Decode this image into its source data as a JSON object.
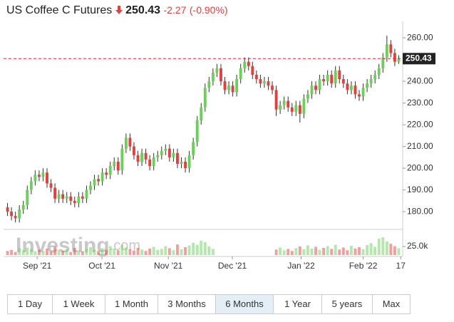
{
  "header": {
    "title": "US Coffee C Futures",
    "price": "250.43",
    "change": "-2.27",
    "change_pct": "(-0.90%)"
  },
  "watermark": {
    "name": "Investing",
    "suffix": ".com"
  },
  "ranges": [
    "1 Day",
    "1 Week",
    "1 Month",
    "3 Months",
    "6 Months",
    "1 Year",
    "5 years",
    "Max"
  ],
  "selected_range": 4,
  "chart_data": {
    "type": "candlestick",
    "up_color": "#6ccf5a",
    "down_color": "#e0413d",
    "last_price": 250.43,
    "xlim": [
      -1,
      100
    ],
    "xticks": [
      {
        "value": 7.5,
        "label": "Sep '21"
      },
      {
        "value": 23.9,
        "label": "Oct '21"
      },
      {
        "value": 40.7,
        "label": "Nov '21"
      },
      {
        "value": 56.9,
        "label": "Dec '21"
      },
      {
        "value": 74.3,
        "label": "Jan '22"
      },
      {
        "value": 90,
        "label": "Feb '22"
      },
      {
        "value": 99.5,
        "label": "17"
      }
    ],
    "ylim": [
      172.5,
      264.3
    ],
    "yticks": [
      {
        "value": 180,
        "label": "180.00"
      },
      {
        "value": 190,
        "label": "190.00"
      },
      {
        "value": 200,
        "label": "200.00"
      },
      {
        "value": 210,
        "label": "210.00"
      },
      {
        "value": 220,
        "label": "220.00"
      },
      {
        "value": 230,
        "label": "230.00"
      },
      {
        "value": 240,
        "label": "240.00"
      },
      {
        "value": 250,
        "label": "250.00"
      },
      {
        "value": 260,
        "label": "260.00"
      }
    ],
    "vol_ylim": [
      0,
      75000
    ],
    "vol_yticks": [
      {
        "value": 25000,
        "label": "25.0k"
      }
    ],
    "open": [
      182,
      180,
      178,
      177,
      181,
      183,
      190,
      194,
      197,
      196,
      198,
      193,
      191,
      186,
      188,
      186,
      187,
      185,
      184,
      187,
      186,
      190,
      192,
      195,
      194,
      198,
      197,
      201,
      203,
      199,
      209,
      214,
      210,
      206,
      203,
      207,
      204,
      201,
      205,
      206,
      208,
      209,
      205,
      207,
      202,
      203,
      200,
      206,
      212,
      222,
      228,
      237,
      240,
      244,
      246,
      240,
      236,
      238,
      235,
      241,
      246,
      249,
      247,
      243,
      241,
      239,
      240,
      238,
      236,
      227,
      229,
      231,
      228,
      226,
      229,
      225,
      232,
      234,
      238,
      236,
      241,
      240,
      243,
      239,
      245,
      241,
      239,
      236,
      238,
      234,
      233,
      237,
      239,
      241,
      243,
      246,
      251,
      257,
      253,
      249
    ],
    "high": [
      184,
      182,
      180,
      183,
      185,
      192,
      196,
      199,
      199,
      200,
      200,
      195,
      193,
      190,
      190,
      189,
      189,
      187,
      189,
      189,
      192,
      194,
      197,
      197,
      200,
      200,
      203,
      205,
      205,
      211,
      216,
      216,
      212,
      208,
      209,
      209,
      206,
      207,
      208,
      210,
      211,
      211,
      209,
      209,
      205,
      205,
      208,
      214,
      224,
      230,
      239,
      242,
      246,
      248,
      248,
      242,
      240,
      240,
      243,
      248,
      251,
      251,
      249,
      245,
      243,
      242,
      242,
      240,
      238,
      231,
      233,
      233,
      230,
      231,
      231,
      234,
      236,
      240,
      240,
      243,
      243,
      245,
      245,
      247,
      247,
      243,
      241,
      240,
      240,
      236,
      239,
      241,
      243,
      245,
      248,
      253,
      261,
      259,
      255,
      252
    ],
    "low": [
      178,
      176,
      175,
      175,
      179,
      181,
      188,
      192,
      194,
      194,
      191,
      189,
      184,
      184,
      184,
      184,
      183,
      182,
      182,
      184,
      184,
      188,
      190,
      192,
      192,
      195,
      195,
      199,
      197,
      197,
      207,
      208,
      204,
      201,
      201,
      202,
      199,
      199,
      203,
      204,
      206,
      203,
      203,
      200,
      200,
      198,
      198,
      204,
      210,
      220,
      226,
      235,
      238,
      242,
      238,
      234,
      234,
      233,
      233,
      239,
      244,
      245,
      241,
      239,
      237,
      237,
      236,
      234,
      224,
      225,
      227,
      226,
      224,
      224,
      221,
      223,
      230,
      232,
      234,
      234,
      238,
      238,
      237,
      237,
      239,
      237,
      234,
      234,
      232,
      231,
      231,
      235,
      237,
      239,
      241,
      244,
      249,
      251,
      247,
      248
    ],
    "close": [
      180,
      178,
      177,
      181,
      183,
      190,
      194,
      197,
      196,
      198,
      193,
      191,
      186,
      188,
      186,
      187,
      185,
      184,
      187,
      186,
      190,
      192,
      195,
      194,
      198,
      197,
      201,
      203,
      199,
      209,
      214,
      210,
      206,
      203,
      207,
      204,
      201,
      205,
      206,
      208,
      209,
      205,
      207,
      202,
      203,
      200,
      206,
      212,
      222,
      228,
      237,
      240,
      244,
      246,
      240,
      236,
      238,
      235,
      241,
      246,
      249,
      247,
      243,
      241,
      239,
      240,
      238,
      236,
      227,
      229,
      231,
      228,
      226,
      229,
      225,
      232,
      234,
      238,
      236,
      241,
      240,
      243,
      239,
      245,
      241,
      239,
      236,
      238,
      234,
      233,
      237,
      239,
      241,
      243,
      246,
      251,
      257,
      253,
      249,
      250.43
    ],
    "volume": [
      12000,
      15000,
      9000,
      20000,
      14000,
      22000,
      18000,
      11000,
      16000,
      13000,
      19000,
      10000,
      24000,
      15000,
      12000,
      17000,
      9000,
      21000,
      14000,
      11000,
      18000,
      23000,
      16000,
      12000,
      20000,
      15000,
      26000,
      19000,
      14000,
      30000,
      22000,
      17000,
      13000,
      21000,
      16000,
      12000,
      19000,
      24000,
      15000,
      18000,
      26000,
      20000,
      14000,
      31000,
      17000,
      23000,
      28000,
      36000,
      30000,
      42000,
      38000,
      25000,
      18000,
      null,
      null,
      null,
      null,
      null,
      null,
      null,
      null,
      null,
      null,
      null,
      null,
      null,
      null,
      null,
      16000,
      22000,
      14000,
      18000,
      12000,
      20000,
      25000,
      17000,
      28000,
      19000,
      24000,
      15000,
      21000,
      26000,
      18000,
      30000,
      16000,
      22000,
      14000,
      27000,
      19000,
      23000,
      17000,
      29000,
      35000,
      24000,
      48000,
      52000,
      40000,
      33000,
      26000,
      20000
    ]
  }
}
